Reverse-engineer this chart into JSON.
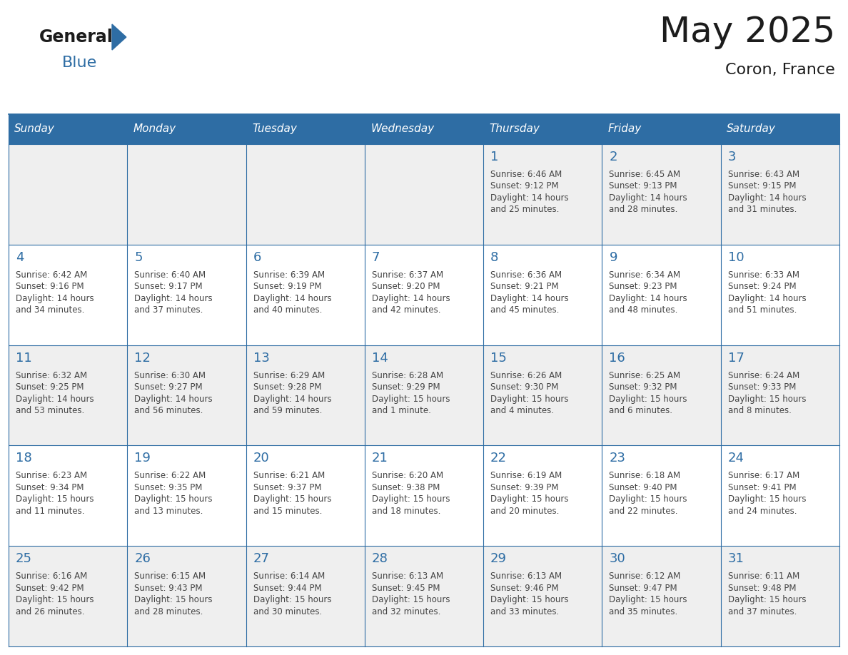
{
  "title": "May 2025",
  "subtitle": "Coron, France",
  "header_bg": "#2E6DA4",
  "header_text": "#FFFFFF",
  "day_names": [
    "Sunday",
    "Monday",
    "Tuesday",
    "Wednesday",
    "Thursday",
    "Friday",
    "Saturday"
  ],
  "cell_bg_even": "#EFEFEF",
  "cell_bg_odd": "#FFFFFF",
  "date_color": "#2E6DA4",
  "text_color": "#444444",
  "grid_color": "#2E6DA4",
  "title_fontsize": 36,
  "subtitle_fontsize": 16,
  "dayname_fontsize": 11,
  "date_fontsize": 13,
  "info_fontsize": 8.5,
  "days": [
    {
      "date": 1,
      "col": 4,
      "row": 0,
      "sunrise": "6:46 AM",
      "sunset": "9:12 PM",
      "daylight_h": "14 hours",
      "daylight_m": "and 25 minutes."
    },
    {
      "date": 2,
      "col": 5,
      "row": 0,
      "sunrise": "6:45 AM",
      "sunset": "9:13 PM",
      "daylight_h": "14 hours",
      "daylight_m": "and 28 minutes."
    },
    {
      "date": 3,
      "col": 6,
      "row": 0,
      "sunrise": "6:43 AM",
      "sunset": "9:15 PM",
      "daylight_h": "14 hours",
      "daylight_m": "and 31 minutes."
    },
    {
      "date": 4,
      "col": 0,
      "row": 1,
      "sunrise": "6:42 AM",
      "sunset": "9:16 PM",
      "daylight_h": "14 hours",
      "daylight_m": "and 34 minutes."
    },
    {
      "date": 5,
      "col": 1,
      "row": 1,
      "sunrise": "6:40 AM",
      "sunset": "9:17 PM",
      "daylight_h": "14 hours",
      "daylight_m": "and 37 minutes."
    },
    {
      "date": 6,
      "col": 2,
      "row": 1,
      "sunrise": "6:39 AM",
      "sunset": "9:19 PM",
      "daylight_h": "14 hours",
      "daylight_m": "and 40 minutes."
    },
    {
      "date": 7,
      "col": 3,
      "row": 1,
      "sunrise": "6:37 AM",
      "sunset": "9:20 PM",
      "daylight_h": "14 hours",
      "daylight_m": "and 42 minutes."
    },
    {
      "date": 8,
      "col": 4,
      "row": 1,
      "sunrise": "6:36 AM",
      "sunset": "9:21 PM",
      "daylight_h": "14 hours",
      "daylight_m": "and 45 minutes."
    },
    {
      "date": 9,
      "col": 5,
      "row": 1,
      "sunrise": "6:34 AM",
      "sunset": "9:23 PM",
      "daylight_h": "14 hours",
      "daylight_m": "and 48 minutes."
    },
    {
      "date": 10,
      "col": 6,
      "row": 1,
      "sunrise": "6:33 AM",
      "sunset": "9:24 PM",
      "daylight_h": "14 hours",
      "daylight_m": "and 51 minutes."
    },
    {
      "date": 11,
      "col": 0,
      "row": 2,
      "sunrise": "6:32 AM",
      "sunset": "9:25 PM",
      "daylight_h": "14 hours",
      "daylight_m": "and 53 minutes."
    },
    {
      "date": 12,
      "col": 1,
      "row": 2,
      "sunrise": "6:30 AM",
      "sunset": "9:27 PM",
      "daylight_h": "14 hours",
      "daylight_m": "and 56 minutes."
    },
    {
      "date": 13,
      "col": 2,
      "row": 2,
      "sunrise": "6:29 AM",
      "sunset": "9:28 PM",
      "daylight_h": "14 hours",
      "daylight_m": "and 59 minutes."
    },
    {
      "date": 14,
      "col": 3,
      "row": 2,
      "sunrise": "6:28 AM",
      "sunset": "9:29 PM",
      "daylight_h": "15 hours",
      "daylight_m": "and 1 minute."
    },
    {
      "date": 15,
      "col": 4,
      "row": 2,
      "sunrise": "6:26 AM",
      "sunset": "9:30 PM",
      "daylight_h": "15 hours",
      "daylight_m": "and 4 minutes."
    },
    {
      "date": 16,
      "col": 5,
      "row": 2,
      "sunrise": "6:25 AM",
      "sunset": "9:32 PM",
      "daylight_h": "15 hours",
      "daylight_m": "and 6 minutes."
    },
    {
      "date": 17,
      "col": 6,
      "row": 2,
      "sunrise": "6:24 AM",
      "sunset": "9:33 PM",
      "daylight_h": "15 hours",
      "daylight_m": "and 8 minutes."
    },
    {
      "date": 18,
      "col": 0,
      "row": 3,
      "sunrise": "6:23 AM",
      "sunset": "9:34 PM",
      "daylight_h": "15 hours",
      "daylight_m": "and 11 minutes."
    },
    {
      "date": 19,
      "col": 1,
      "row": 3,
      "sunrise": "6:22 AM",
      "sunset": "9:35 PM",
      "daylight_h": "15 hours",
      "daylight_m": "and 13 minutes."
    },
    {
      "date": 20,
      "col": 2,
      "row": 3,
      "sunrise": "6:21 AM",
      "sunset": "9:37 PM",
      "daylight_h": "15 hours",
      "daylight_m": "and 15 minutes."
    },
    {
      "date": 21,
      "col": 3,
      "row": 3,
      "sunrise": "6:20 AM",
      "sunset": "9:38 PM",
      "daylight_h": "15 hours",
      "daylight_m": "and 18 minutes."
    },
    {
      "date": 22,
      "col": 4,
      "row": 3,
      "sunrise": "6:19 AM",
      "sunset": "9:39 PM",
      "daylight_h": "15 hours",
      "daylight_m": "and 20 minutes."
    },
    {
      "date": 23,
      "col": 5,
      "row": 3,
      "sunrise": "6:18 AM",
      "sunset": "9:40 PM",
      "daylight_h": "15 hours",
      "daylight_m": "and 22 minutes."
    },
    {
      "date": 24,
      "col": 6,
      "row": 3,
      "sunrise": "6:17 AM",
      "sunset": "9:41 PM",
      "daylight_h": "15 hours",
      "daylight_m": "and 24 minutes."
    },
    {
      "date": 25,
      "col": 0,
      "row": 4,
      "sunrise": "6:16 AM",
      "sunset": "9:42 PM",
      "daylight_h": "15 hours",
      "daylight_m": "and 26 minutes."
    },
    {
      "date": 26,
      "col": 1,
      "row": 4,
      "sunrise": "6:15 AM",
      "sunset": "9:43 PM",
      "daylight_h": "15 hours",
      "daylight_m": "and 28 minutes."
    },
    {
      "date": 27,
      "col": 2,
      "row": 4,
      "sunrise": "6:14 AM",
      "sunset": "9:44 PM",
      "daylight_h": "15 hours",
      "daylight_m": "and 30 minutes."
    },
    {
      "date": 28,
      "col": 3,
      "row": 4,
      "sunrise": "6:13 AM",
      "sunset": "9:45 PM",
      "daylight_h": "15 hours",
      "daylight_m": "and 32 minutes."
    },
    {
      "date": 29,
      "col": 4,
      "row": 4,
      "sunrise": "6:13 AM",
      "sunset": "9:46 PM",
      "daylight_h": "15 hours",
      "daylight_m": "and 33 minutes."
    },
    {
      "date": 30,
      "col": 5,
      "row": 4,
      "sunrise": "6:12 AM",
      "sunset": "9:47 PM",
      "daylight_h": "15 hours",
      "daylight_m": "and 35 minutes."
    },
    {
      "date": 31,
      "col": 6,
      "row": 4,
      "sunrise": "6:11 AM",
      "sunset": "9:48 PM",
      "daylight_h": "15 hours",
      "daylight_m": "and 37 minutes."
    }
  ]
}
